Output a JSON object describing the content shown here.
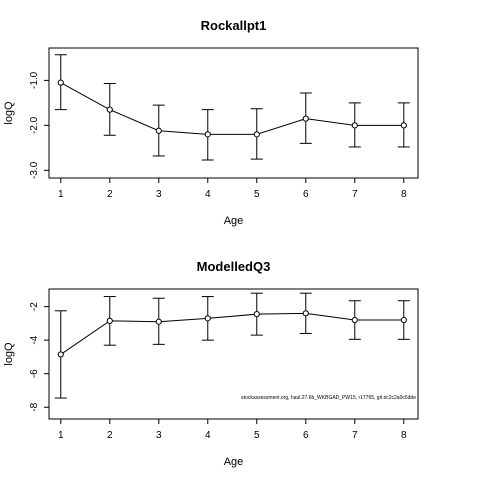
{
  "chart_data": [
    {
      "type": "line",
      "title": "Rockallpt1",
      "xlabel": "Age",
      "ylabel": "logQ",
      "x": [
        1,
        2,
        3,
        4,
        5,
        6,
        7,
        8
      ],
      "y": [
        -1.05,
        -1.65,
        -2.12,
        -2.2,
        -2.2,
        -1.85,
        -2.0,
        -2.0
      ],
      "lower": [
        -1.65,
        -2.22,
        -2.68,
        -2.77,
        -2.75,
        -2.4,
        -2.48,
        -2.48
      ],
      "upper": [
        -0.43,
        -1.07,
        -1.55,
        -1.65,
        -1.63,
        -1.28,
        -1.5,
        -1.5
      ],
      "xlim": [
        0.76,
        8.29
      ],
      "ylim": [
        -3.17,
        -0.28
      ],
      "xticks": [
        "1",
        "2",
        "3",
        "4",
        "5",
        "6",
        "7",
        "8"
      ],
      "yticks": [
        "-3.0",
        "-2.0",
        "-1.0"
      ],
      "ytick_values": [
        -3.0,
        -2.0,
        -1.0
      ],
      "grid": false,
      "legend": "none"
    },
    {
      "type": "line",
      "title": "ModelledQ3",
      "xlabel": "Age",
      "ylabel": "logQ",
      "x": [
        1,
        2,
        3,
        4,
        5,
        6,
        7,
        8
      ],
      "y": [
        -4.85,
        -2.85,
        -2.9,
        -2.7,
        -2.45,
        -2.4,
        -2.8,
        -2.8
      ],
      "lower": [
        -7.45,
        -4.3,
        -4.25,
        -4.0,
        -3.7,
        -3.6,
        -3.95,
        -3.95
      ],
      "upper": [
        -2.25,
        -1.4,
        -1.5,
        -1.4,
        -1.2,
        -1.2,
        -1.65,
        -1.65
      ],
      "xlim": [
        0.76,
        8.29
      ],
      "ylim": [
        -8.7,
        -0.95
      ],
      "xticks": [
        "1",
        "2",
        "3",
        "4",
        "5",
        "6",
        "7",
        "8"
      ],
      "yticks": [
        "-8",
        "-6",
        "-4",
        "-2"
      ],
      "ytick_values": [
        -8,
        -6,
        -4,
        -2
      ],
      "grid": false,
      "legend": "none",
      "annotation": "stockassessment.org, haul.27.6b_WKBGAD_PW15, r17765, git ec2c2a0c6dde"
    }
  ],
  "colors": {
    "ink": "#000000",
    "background": "#ffffff"
  }
}
